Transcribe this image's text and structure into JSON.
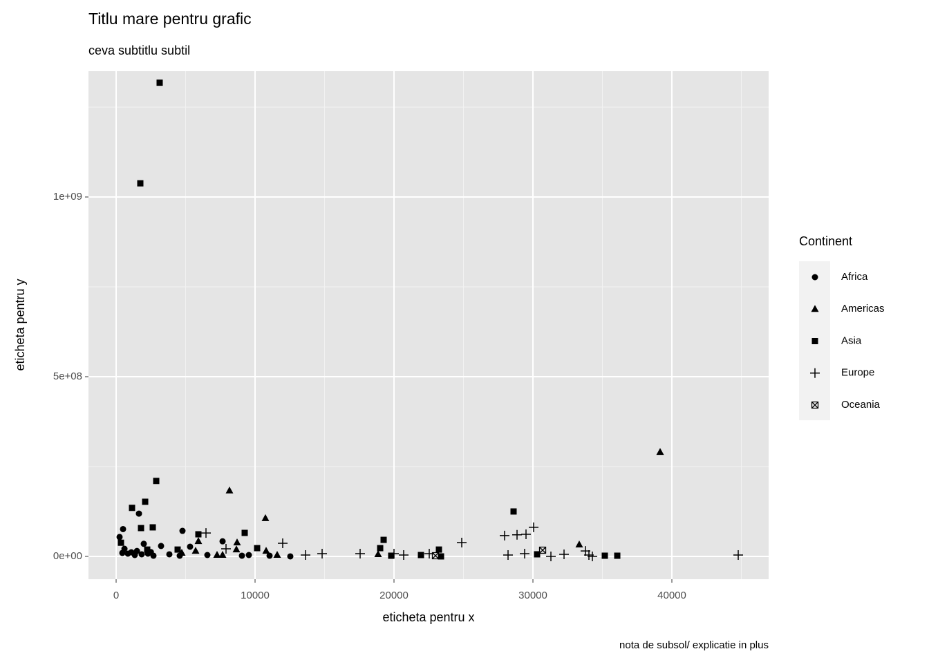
{
  "chart_data": {
    "type": "scatter",
    "title": "Titlu mare pentru grafic",
    "subtitle": "ceva subtitlu subtil",
    "caption": "nota de subsol/ explicatie in plus",
    "x_label": "eticheta pentru x",
    "y_label": "eticheta pentru y",
    "legend_title": "Continent",
    "legend_position": "right",
    "grid": true,
    "xlim": [
      -1990,
      46965
    ],
    "ylim": [
      -63500000.0,
      1350000000.0
    ],
    "xticks": [
      0,
      10000,
      20000,
      30000,
      40000
    ],
    "xminor": [
      5000,
      15000,
      25000,
      35000,
      45000
    ],
    "yticks": [
      {
        "value": 0,
        "label": "0e+00"
      },
      {
        "value": 500000000.0,
        "label": "5e+08"
      },
      {
        "value": 1000000000.0,
        "label": "1e+09"
      }
    ],
    "yminor": [
      250000000.0,
      750000000.0,
      1250000000.0
    ],
    "series": [
      {
        "name": "Africa",
        "shape": "circle",
        "color": "#000000",
        "x": [
          1642,
          4776,
          498,
          249,
          7662,
          1990,
          3234,
          5323,
          448,
          846,
          1095,
          1343,
          1841,
          2289,
          2687,
          3831,
          4577,
          6567,
          9055,
          9552,
          11045,
          12537,
          600,
          1500,
          2500
        ],
        "values": [
          119000000.0,
          71000000.0,
          76000000.0,
          54000000.0,
          42000000.0,
          35000000.0,
          29000000.0,
          27000000.0,
          9600000.0,
          7700000.0,
          11500000.0,
          3800000.0,
          5800000.0,
          7700000.0,
          1900000.0,
          5800000.0,
          1900000.0,
          3800000.0,
          1900000.0,
          3800000.0,
          1900000.0,
          0,
          21000000.0,
          15000000.0,
          12000000.0
        ]
      },
      {
        "name": "Americas",
        "shape": "triangle",
        "color": "#000000",
        "x": [
          39154,
          8159,
          10746,
          33333,
          8706,
          5920,
          18856,
          10796,
          5721,
          11592,
          7264,
          7662,
          4726,
          8657
        ],
        "values": [
          290000000.0,
          183000000.0,
          106000000.0,
          32700000.0,
          38500000.0,
          42000000.0,
          5800000.0,
          15000000.0,
          15000000.0,
          3800000.0,
          3800000.0,
          3800000.0,
          9600000.0,
          19000000.0
        ]
      },
      {
        "name": "Asia",
        "shape": "square",
        "color": "#000000",
        "x": [
          3134,
          1741,
          2886,
          2090,
          1144,
          2637,
          1791,
          5920,
          9254,
          28607,
          19254,
          19005,
          23234,
          10149,
          30298,
          36070,
          35174,
          19800,
          21940,
          23383,
          348,
          2239,
          4428
        ],
        "values": [
          1318000000.0,
          1038000000.0,
          210000000.0,
          152000000.0,
          135000000.0,
          80800000.0,
          78800000.0,
          61500000.0,
          65400000.0,
          125000000.0,
          46000000.0,
          23000000.0,
          19000000.0,
          23000000.0,
          5800000.0,
          1900000.0,
          1900000.0,
          1900000.0,
          3800000.0,
          0,
          38000000.0,
          19000000.0,
          19000000.0
        ]
      },
      {
        "name": "Europe",
        "shape": "plus",
        "color": "#000000",
        "x": [
          44776,
          24876,
          30050,
          29502,
          28856,
          27960,
          11990,
          6468,
          14826,
          17562,
          13632,
          20697,
          22537,
          28209,
          29403,
          31294,
          32239,
          34030,
          34279,
          33781,
          7910,
          20000
        ],
        "values": [
          3800000.0,
          38500000.0,
          81000000.0,
          61500000.0,
          60000000.0,
          58000000.0,
          36500000.0,
          65000000.0,
          7700000.0,
          7700000.0,
          3800000.0,
          3800000.0,
          7700000.0,
          3800000.0,
          7700000.0,
          0,
          5800000.0,
          3800000.0,
          0,
          15000000.0,
          21000000.0,
          7700000.0
        ]
      },
      {
        "name": "Oceania",
        "shape": "square-x",
        "color": "#000000",
        "x": [
          30697,
          22985
        ],
        "values": [
          17300000.0,
          1900000.0
        ]
      }
    ]
  }
}
